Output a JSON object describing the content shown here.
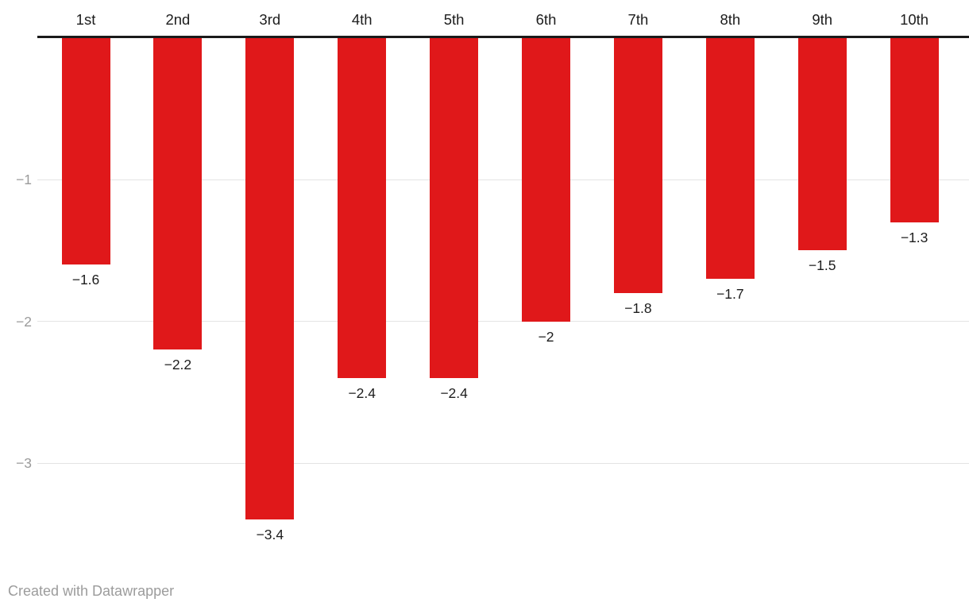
{
  "chart_data": {
    "type": "bar",
    "categories": [
      "1st",
      "2nd",
      "3rd",
      "4th",
      "5th",
      "6th",
      "7th",
      "8th",
      "9th",
      "10th"
    ],
    "values": [
      -1.6,
      -2.2,
      -3.4,
      -2.4,
      -2.4,
      -2,
      -1.8,
      -1.7,
      -1.5,
      -1.3
    ],
    "value_labels": [
      "−1.6",
      "−2.2",
      "−3.4",
      "−2.4",
      "−2.4",
      "−2",
      "−1.8",
      "−1.7",
      "−1.5",
      "−1.3"
    ],
    "title": "",
    "xlabel": "",
    "ylabel": "",
    "ylim": [
      -3.6,
      0
    ],
    "y_ticks": [
      {
        "value": -1,
        "label": "−1"
      },
      {
        "value": -2,
        "label": "−2"
      },
      {
        "value": -3,
        "label": "−3"
      }
    ],
    "grid": true,
    "legend": null,
    "orientation": "vertical",
    "bar_color": "#e0181a",
    "baseline_color": "#1a1a1a",
    "gridline_color": "#e4e4e4",
    "tick_label_color": "#9b9b9b",
    "category_label_color": "#1d1d1d",
    "value_label_color": "#1d1d1d"
  },
  "footer": {
    "credit_label": "Created with Datawrapper"
  }
}
